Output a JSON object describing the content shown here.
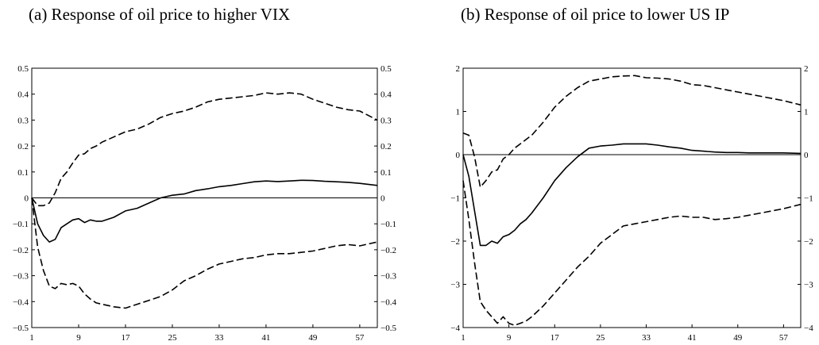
{
  "panels": [
    {
      "title": "(a)  Response of oil price to higher VIX"
    },
    {
      "title": "(b)  Response of oil price to lower US IP"
    }
  ],
  "chart_data": [
    {
      "type": "line",
      "title": "(a)  Response of oil price to higher VIX",
      "xlabel": "",
      "ylabel": "",
      "xlim": [
        1,
        60
      ],
      "ylim": [
        -0.5,
        0.5
      ],
      "xticks": [
        1,
        9,
        17,
        25,
        33,
        41,
        49,
        57
      ],
      "yticks": [
        -0.5,
        -0.4,
        -0.3,
        -0.2,
        -0.1,
        0,
        0.1,
        0.2,
        0.3,
        0.4,
        0.5
      ],
      "ytick_labels": [
        "−0.5",
        "−0.4",
        "−0.3",
        "−0.2",
        "−0.1",
        "0",
        "0.1",
        "0.2",
        "0.3",
        "0.4",
        "0.5"
      ],
      "grid": false,
      "zero_line": true,
      "series": [
        {
          "style": "solid",
          "x": [
            1,
            2,
            3,
            4,
            5,
            6,
            7,
            8,
            9,
            10,
            11,
            12,
            13,
            15,
            17,
            19,
            21,
            23,
            25,
            27,
            29,
            31,
            33,
            35,
            37,
            39,
            41,
            43,
            45,
            47,
            49,
            51,
            53,
            55,
            57,
            60
          ],
          "y": [
            0,
            -0.1,
            -0.145,
            -0.17,
            -0.16,
            -0.115,
            -0.1,
            -0.085,
            -0.08,
            -0.095,
            -0.085,
            -0.09,
            -0.09,
            -0.075,
            -0.05,
            -0.04,
            -0.02,
            0,
            0.01,
            0.015,
            0.028,
            0.035,
            0.043,
            0.048,
            0.055,
            0.062,
            0.065,
            0.063,
            0.065,
            0.068,
            0.067,
            0.064,
            0.062,
            0.06,
            0.056,
            0.048
          ]
        },
        {
          "style": "dashed",
          "x": [
            1,
            2,
            3,
            4,
            5,
            6,
            7,
            8,
            9,
            10,
            11,
            12,
            13,
            15,
            17,
            19,
            21,
            23,
            25,
            27,
            29,
            31,
            33,
            35,
            37,
            39,
            41,
            43,
            45,
            47,
            49,
            51,
            53,
            55,
            57,
            60
          ],
          "y": [
            0,
            -0.03,
            -0.03,
            -0.02,
            0.02,
            0.075,
            0.1,
            0.135,
            0.165,
            0.17,
            0.19,
            0.2,
            0.215,
            0.235,
            0.255,
            0.265,
            0.285,
            0.31,
            0.325,
            0.335,
            0.35,
            0.37,
            0.38,
            0.385,
            0.39,
            0.395,
            0.405,
            0.4,
            0.405,
            0.4,
            0.38,
            0.365,
            0.35,
            0.34,
            0.335,
            0.3
          ]
        },
        {
          "style": "dashed",
          "x": [
            1,
            2,
            3,
            4,
            5,
            6,
            7,
            8,
            9,
            10,
            11,
            12,
            13,
            15,
            17,
            19,
            21,
            23,
            25,
            27,
            29,
            31,
            33,
            35,
            37,
            39,
            41,
            43,
            45,
            47,
            49,
            51,
            53,
            55,
            57,
            60
          ],
          "y": [
            0,
            -0.19,
            -0.28,
            -0.34,
            -0.35,
            -0.33,
            -0.335,
            -0.33,
            -0.34,
            -0.37,
            -0.39,
            -0.405,
            -0.41,
            -0.42,
            -0.425,
            -0.41,
            -0.395,
            -0.38,
            -0.355,
            -0.32,
            -0.3,
            -0.275,
            -0.255,
            -0.245,
            -0.235,
            -0.23,
            -0.22,
            -0.215,
            -0.215,
            -0.21,
            -0.205,
            -0.195,
            -0.185,
            -0.18,
            -0.185,
            -0.17
          ]
        }
      ]
    },
    {
      "type": "line",
      "title": "(b)  Response of oil price to lower US IP",
      "xlabel": "",
      "ylabel": "",
      "xlim": [
        1,
        60
      ],
      "ylim": [
        -4,
        2
      ],
      "xticks": [
        1,
        9,
        17,
        25,
        33,
        41,
        49,
        57
      ],
      "yticks": [
        -4,
        -3,
        -2,
        -1,
        0,
        1,
        2
      ],
      "ytick_labels": [
        "−4",
        "−3",
        "−2",
        "−1",
        "0",
        "1",
        "2"
      ],
      "grid": false,
      "zero_line": true,
      "series": [
        {
          "style": "solid",
          "x": [
            1,
            2,
            3,
            4,
            5,
            6,
            7,
            8,
            9,
            10,
            11,
            12,
            13,
            15,
            17,
            19,
            21,
            23,
            25,
            27,
            29,
            31,
            33,
            35,
            37,
            39,
            41,
            43,
            45,
            47,
            49,
            51,
            53,
            55,
            57,
            60
          ],
          "y": [
            0,
            -0.5,
            -1.3,
            -2.1,
            -2.1,
            -2.0,
            -2.05,
            -1.9,
            -1.85,
            -1.75,
            -1.6,
            -1.5,
            -1.35,
            -1.0,
            -0.6,
            -0.3,
            -0.05,
            0.15,
            0.2,
            0.22,
            0.25,
            0.25,
            0.25,
            0.22,
            0.18,
            0.15,
            0.1,
            0.08,
            0.06,
            0.05,
            0.05,
            0.04,
            0.04,
            0.04,
            0.04,
            0.03
          ]
        },
        {
          "style": "dashed",
          "x": [
            1,
            2,
            3,
            4,
            5,
            6,
            7,
            8,
            9,
            10,
            11,
            12,
            13,
            15,
            17,
            19,
            21,
            23,
            25,
            27,
            29,
            31,
            33,
            35,
            37,
            39,
            41,
            43,
            45,
            47,
            49,
            51,
            53,
            55,
            57,
            60
          ],
          "y": [
            0.5,
            0.45,
            -0.05,
            -0.75,
            -0.6,
            -0.4,
            -0.35,
            -0.1,
            0,
            0.15,
            0.25,
            0.35,
            0.45,
            0.75,
            1.1,
            1.35,
            1.55,
            1.7,
            1.75,
            1.8,
            1.82,
            1.83,
            1.78,
            1.77,
            1.75,
            1.7,
            1.62,
            1.6,
            1.55,
            1.5,
            1.45,
            1.4,
            1.35,
            1.3,
            1.25,
            1.15
          ]
        },
        {
          "style": "dashed",
          "x": [
            1,
            2,
            3,
            4,
            5,
            6,
            7,
            8,
            9,
            10,
            11,
            12,
            13,
            15,
            17,
            19,
            21,
            23,
            25,
            27,
            29,
            31,
            33,
            35,
            37,
            39,
            41,
            43,
            45,
            47,
            49,
            51,
            53,
            55,
            57,
            60
          ],
          "y": [
            -0.6,
            -1.5,
            -2.5,
            -3.4,
            -3.6,
            -3.75,
            -3.9,
            -3.75,
            -3.9,
            -3.95,
            -3.9,
            -3.85,
            -3.75,
            -3.5,
            -3.2,
            -2.9,
            -2.6,
            -2.35,
            -2.05,
            -1.85,
            -1.65,
            -1.6,
            -1.55,
            -1.5,
            -1.45,
            -1.42,
            -1.45,
            -1.45,
            -1.5,
            -1.48,
            -1.45,
            -1.4,
            -1.35,
            -1.3,
            -1.25,
            -1.15
          ]
        }
      ]
    }
  ]
}
